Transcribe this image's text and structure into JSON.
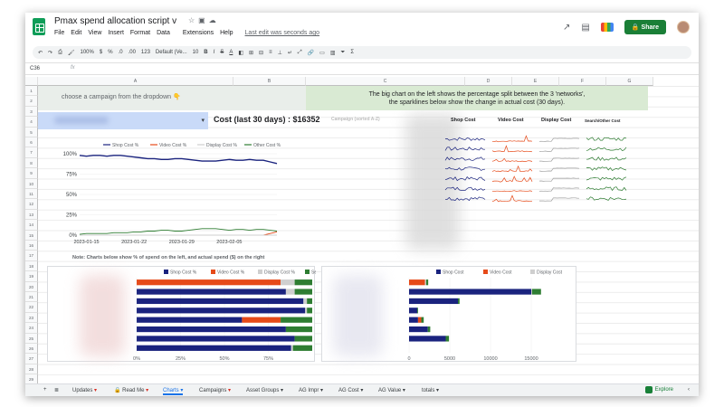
{
  "window": {
    "doc_title": "Pmax spend allocation script v",
    "menus": [
      "File",
      "Edit",
      "View",
      "Insert",
      "Format",
      "Data",
      "",
      "Extensions",
      "Help"
    ],
    "last_edit": "Last edit was seconds ago",
    "share_label": "Share"
  },
  "toolbar": {
    "zoom": "100%",
    "currency": "$",
    "percent": "%",
    "decimal_dec": ".0",
    "decimal_inc": ".00",
    "number_format": "123",
    "font": "Default (Ve...",
    "font_size": "10",
    "bold": "B",
    "italic": "I",
    "strike": "S",
    "text_color": "A",
    "sum": "Σ"
  },
  "formula_bar": {
    "cell_ref": "C36",
    "fx": "fx"
  },
  "columns": [
    "A",
    "B",
    "C",
    "D",
    "E",
    "F",
    "G"
  ],
  "rows": [
    "1",
    "2",
    "3",
    "4",
    "5",
    "6",
    "7",
    "8",
    "9",
    "10",
    "11",
    "12",
    "13",
    "14",
    "15",
    "16",
    "17",
    "18",
    "19",
    "20",
    "21",
    "22",
    "23",
    "24",
    "25",
    "26",
    "27",
    "28",
    "29"
  ],
  "sheet": {
    "instruction": "choose a campaign from the dropdown 👇",
    "explanation_line1": "The big chart on the left shows the percentage split between the 3 'networks',",
    "explanation_line2": "the sparklines below show the change in actual cost (30 days).",
    "cost_title": "Cost (last 30 days) : $16352",
    "campaign_label": "Campaign (sorted A-Z)",
    "spark_headers": [
      "Shop Cost",
      "Video Cost",
      "Display Cost",
      "Search/Other Cost"
    ],
    "note": "Note: Charts below show % of spend on the left, and actual spend ($) on the right"
  },
  "colors": {
    "shop": "#1a237e",
    "video": "#e64a19",
    "display": "#cfcfcf",
    "other": "#2e7d32"
  },
  "chart_data": [
    {
      "type": "line",
      "legend": [
        "Shop Cost %",
        "Video Cost %",
        "Display Cost %",
        "Other Cost %"
      ],
      "x_ticks": [
        "2023-01-15",
        "2023-01-22",
        "2023-01-29",
        "2023-02-05"
      ],
      "y_ticks": [
        "0%",
        "25%",
        "50%",
        "75%",
        "100%"
      ],
      "ylim": [
        0,
        100
      ],
      "legend_position": "top",
      "series": [
        {
          "name": "Shop Cost %",
          "values": [
            98,
            97,
            98,
            98,
            97,
            98,
            98,
            97,
            96,
            95,
            94,
            94,
            93,
            93,
            94,
            94,
            93,
            92,
            91,
            91,
            91,
            92,
            93,
            92,
            92,
            93,
            92,
            92,
            90,
            88
          ]
        },
        {
          "name": "Video Cost %",
          "values": [
            0,
            0,
            0,
            0,
            0,
            0,
            0,
            0,
            0,
            0,
            0,
            0,
            0,
            0,
            0,
            0,
            0,
            0,
            0,
            0,
            0,
            0,
            0,
            0,
            0,
            0,
            0,
            0,
            2,
            4
          ]
        },
        {
          "name": "Display Cost %",
          "values": [
            0,
            0,
            0,
            0,
            0,
            0,
            0,
            0,
            0,
            0,
            0,
            0,
            0,
            0,
            0,
            0,
            0,
            0,
            0,
            0,
            0,
            0,
            0,
            0,
            0,
            0,
            0,
            0,
            0,
            0
          ]
        },
        {
          "name": "Other Cost %",
          "values": [
            1,
            2,
            2,
            2,
            2,
            3,
            3,
            3,
            4,
            4,
            5,
            5,
            6,
            6,
            5,
            5,
            6,
            7,
            8,
            8,
            8,
            7,
            6,
            7,
            7,
            6,
            7,
            7,
            6,
            5
          ]
        }
      ]
    },
    {
      "type": "bar",
      "orientation": "horizontal",
      "stacked": true,
      "legend": [
        "Shop Cost %",
        "Video Cost %",
        "Display Cost %",
        "Search* Cost %"
      ],
      "x_ticks": [
        "0%",
        "25%",
        "50%",
        "75%"
      ],
      "xlim": [
        0,
        100
      ],
      "series": [
        {
          "name": "Shop Cost %",
          "values": [
            0,
            85,
            95,
            96,
            60,
            85,
            90,
            88
          ]
        },
        {
          "name": "Video Cost %",
          "values": [
            82,
            0,
            0,
            0,
            22,
            0,
            0,
            0
          ]
        },
        {
          "name": "Display Cost %",
          "values": [
            8,
            5,
            2,
            1,
            0,
            0,
            0,
            1
          ]
        },
        {
          "name": "Search* Cost %",
          "values": [
            10,
            10,
            3,
            3,
            18,
            15,
            10,
            11
          ]
        }
      ]
    },
    {
      "type": "bar",
      "orientation": "horizontal",
      "stacked": true,
      "legend": [
        "Shop Cost",
        "Video Cost",
        "Display Cost",
        "Search* Cost"
      ],
      "x_ticks": [
        "0",
        "5000",
        "10000",
        "15000"
      ],
      "xlim": [
        0,
        20000
      ],
      "series": [
        {
          "name": "Shop Cost",
          "values": [
            0,
            15000,
            6000,
            1000,
            1100,
            2300,
            4500,
            0
          ]
        },
        {
          "name": "Video Cost",
          "values": [
            1950,
            0,
            0,
            0,
            400,
            0,
            0,
            0
          ]
        },
        {
          "name": "Display Cost",
          "values": [
            150,
            100,
            0,
            0,
            0,
            0,
            0,
            0
          ]
        },
        {
          "name": "Search* Cost",
          "values": [
            250,
            1100,
            200,
            100,
            300,
            300,
            400,
            0
          ]
        }
      ]
    }
  ],
  "tabs": [
    "Updates",
    "Read Me",
    "Charts",
    "Campaigns",
    "Asset Groups",
    "AG Impr",
    "AG Cost",
    "AG Value",
    "totals"
  ],
  "explore_label": "Explore"
}
